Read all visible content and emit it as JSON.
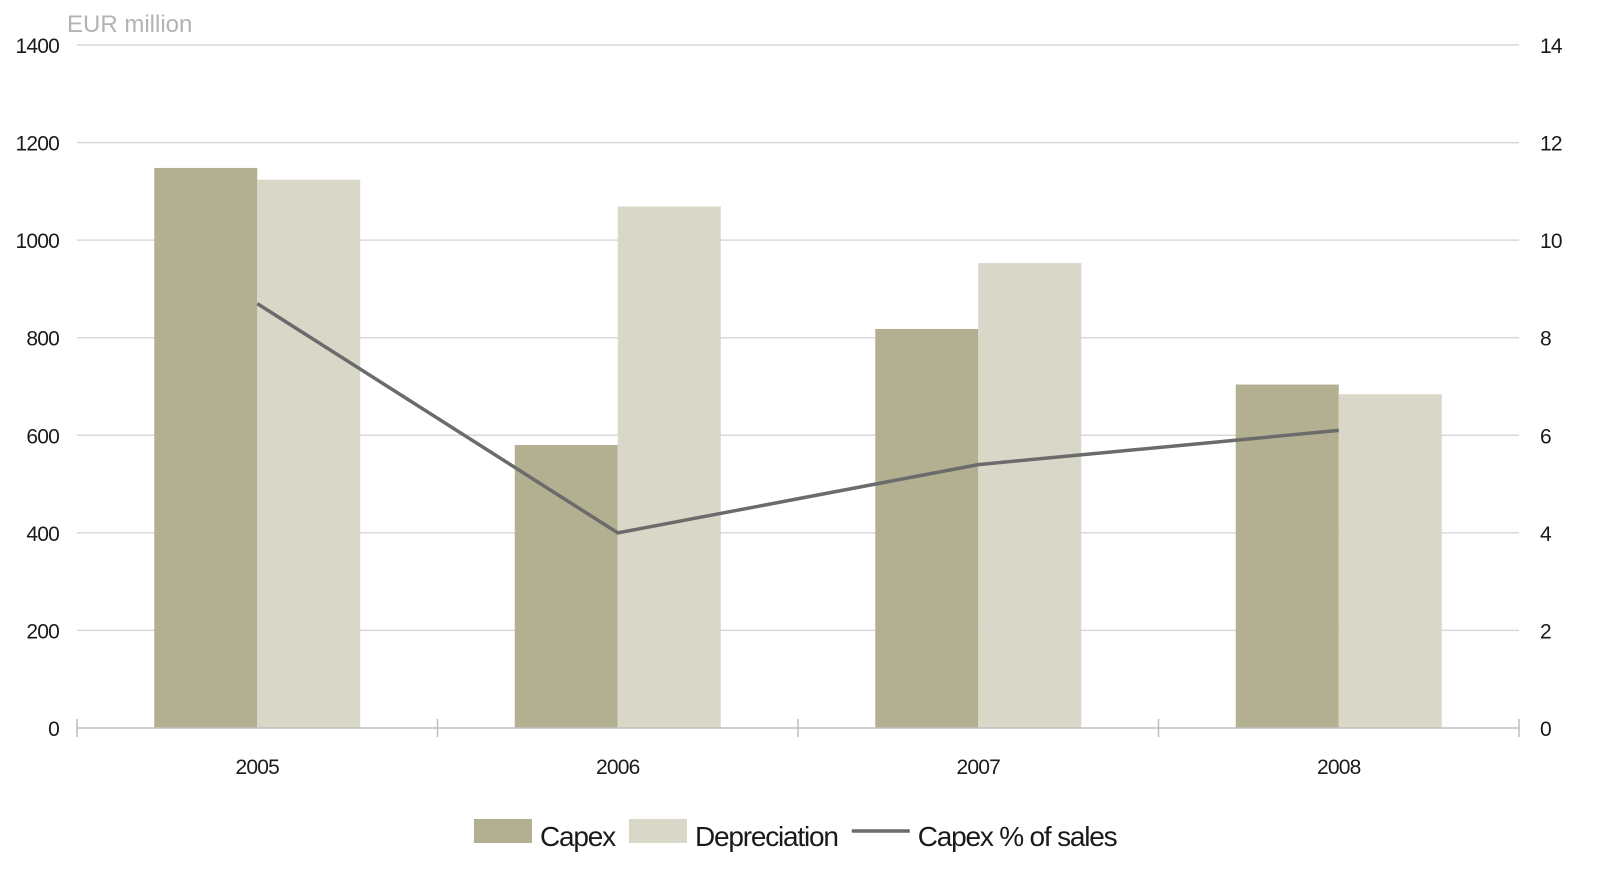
{
  "chart_data": {
    "type": "bar",
    "unit_label": "EUR million",
    "categories": [
      "2005",
      "2006",
      "2007",
      "2008"
    ],
    "series": [
      {
        "name": "Capex",
        "type": "bar",
        "axis": "left",
        "color": "#b3af91",
        "values": [
          1148,
          580,
          818,
          704
        ]
      },
      {
        "name": "Depreciation",
        "type": "bar",
        "axis": "left",
        "color": "#d9d7c8",
        "values": [
          1124,
          1069,
          953,
          684
        ]
      },
      {
        "name": "Capex % of sales",
        "type": "line",
        "axis": "right",
        "color": "#6b6b6b",
        "values": [
          8.7,
          4.0,
          5.4,
          6.1
        ]
      }
    ],
    "y_left": {
      "min": 0,
      "max": 1400,
      "ticks": [
        "0",
        "200",
        "400",
        "600",
        "800",
        "1000",
        "1200",
        "1400"
      ]
    },
    "y_right": {
      "min": 0,
      "max": 14,
      "ticks": [
        "0",
        "2",
        "4",
        "6",
        "8",
        "10",
        "12",
        "14"
      ]
    },
    "grid": true,
    "legend": "bottom-center",
    "colors": {
      "gridline": "#d9d9d9",
      "axis": "#bfbfbf"
    }
  }
}
